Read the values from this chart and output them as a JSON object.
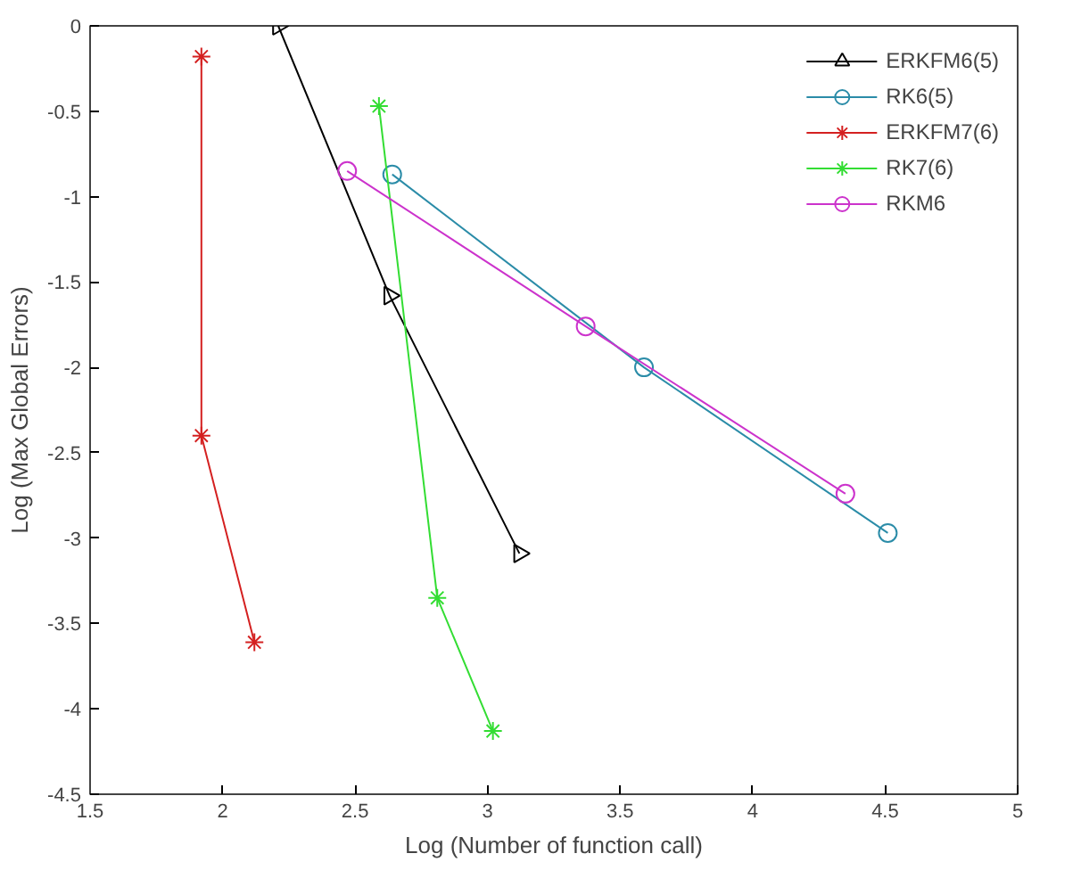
{
  "chart_data": {
    "type": "line",
    "xlabel": "Log (Number of function call)",
    "ylabel": "Log (Max Global Errors)",
    "xlim": [
      1.5,
      5
    ],
    "ylim": [
      -4.5,
      0
    ],
    "xticks": [
      1.5,
      2,
      2.5,
      3,
      3.5,
      4,
      4.5,
      5
    ],
    "yticks": [
      -4.5,
      -4,
      -3.5,
      -3,
      -2.5,
      -2,
      -1.5,
      -1,
      -0.5,
      0
    ],
    "grid": false,
    "legend": "top right",
    "line_style": "solid",
    "series": [
      {
        "name": "ERKFM6(5)",
        "color": "#000000",
        "marker": "triangle",
        "x": [
          2.21,
          2.63,
          3.12
        ],
        "values": [
          0,
          -1.58,
          -3.09
        ]
      },
      {
        "name": "RK6(5)",
        "color": "#2b8ca8",
        "marker": "circle",
        "x": [
          2.64,
          3.59,
          4.51
        ],
        "values": [
          -0.87,
          -2.0,
          -2.97
        ]
      },
      {
        "name": "ERKFM7(6)",
        "color": "#d42020",
        "marker": "cross",
        "x": [
          1.92,
          1.92,
          2.12
        ],
        "values": [
          -0.18,
          -2.4,
          -3.61
        ]
      },
      {
        "name": "RK7(6)",
        "color": "#33dd33",
        "marker": "cross",
        "x": [
          2.59,
          2.81,
          3.02
        ],
        "values": [
          -0.47,
          -3.35,
          -4.13
        ]
      },
      {
        "name": "RKM6",
        "color": "#cc33cc",
        "marker": "circle",
        "x": [
          2.47,
          3.37,
          4.35
        ],
        "values": [
          -0.85,
          -1.76,
          -2.74
        ]
      }
    ]
  }
}
